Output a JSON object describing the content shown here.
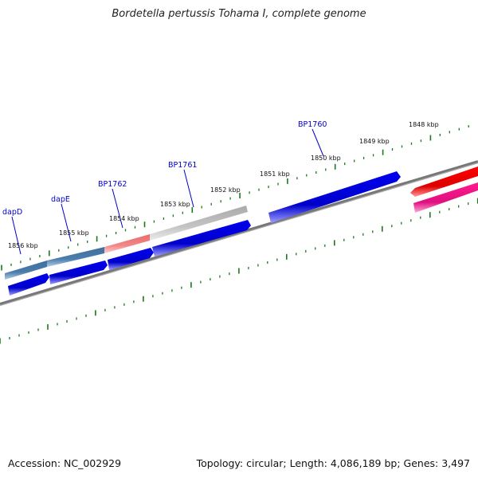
{
  "title": "Bordetella pertussis Tohama I, complete genome",
  "footer": {
    "accession": "Accession: NC_002929",
    "topology": "Topology: circular; Length: 4,086,189 bp; Genes: 3,497"
  },
  "colors": {
    "backbone": "#808080",
    "tick": "#1a7a1a",
    "gene_label": "#0000cc",
    "cds_forward": "#0000e6",
    "feature_steelblue": "#4a7aa8",
    "feature_salmon": "#f08080",
    "feature_gray": "#c0c0c0",
    "feature_red": "#ee0000",
    "feature_pink": "#ee1188"
  },
  "scale": {
    "tick_labels": [
      "1848 kbp",
      "1849 kbp",
      "1850 kbp",
      "1851 kbp",
      "1852 kbp",
      "1853 kbp",
      "1854 kbp",
      "1855 kbp",
      "1856 kbp"
    ]
  },
  "genes": {
    "labels": [
      "BP1760",
      "BP1761",
      "BP1762",
      "dapE",
      "dapD"
    ]
  }
}
